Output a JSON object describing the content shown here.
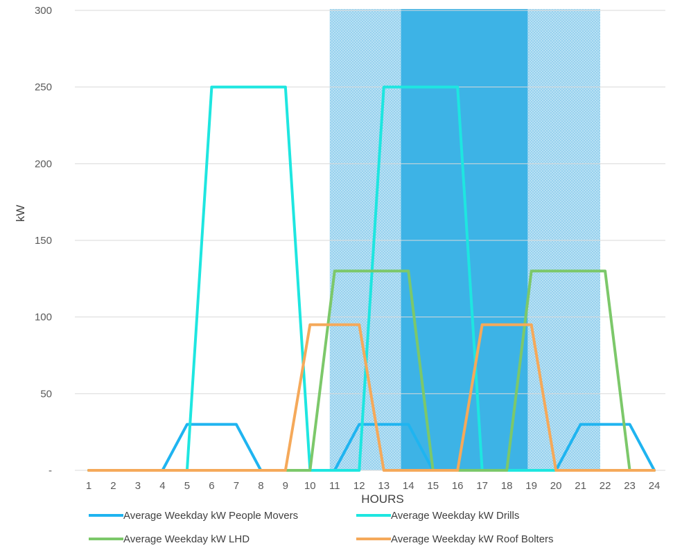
{
  "chart_data": {
    "type": "line",
    "title": "",
    "xlabel": "HOURS",
    "ylabel": "kW",
    "x": [
      1,
      2,
      3,
      4,
      5,
      6,
      7,
      8,
      9,
      10,
      11,
      12,
      13,
      14,
      15,
      16,
      17,
      18,
      19,
      20,
      21,
      22,
      23,
      24
    ],
    "x_tick_labels": [
      "1",
      "2",
      "3",
      "4",
      "5",
      "6",
      "7",
      "8",
      "9",
      "10",
      "11",
      "12",
      "13",
      "14",
      "15",
      "16",
      "17",
      "18",
      "19",
      "20",
      "21",
      "22",
      "23",
      "24"
    ],
    "ylim": [
      0,
      300
    ],
    "y_ticks": [
      0,
      50,
      100,
      150,
      200,
      250,
      300
    ],
    "y_tick_labels": [
      "-",
      "50",
      "100",
      "150",
      "200",
      "250",
      "300"
    ],
    "grid": true,
    "legend_position": "bottom",
    "shaded_bands": [
      {
        "x_start": 10.8,
        "x_end": 21.8,
        "color": "#a8d8f0",
        "pattern": "dotted"
      },
      {
        "x_start": 13.7,
        "x_end": 18.85,
        "color": "#3db3e6",
        "pattern": "solid"
      }
    ],
    "series": [
      {
        "name": "Average Weekday kW People Movers",
        "color": "#1fb4f0",
        "values": [
          0,
          0,
          0,
          0,
          30,
          30,
          30,
          0,
          0,
          0,
          0,
          30,
          30,
          30,
          0,
          0,
          0,
          0,
          0,
          0,
          30,
          30,
          30,
          0
        ]
      },
      {
        "name": "Average Weekday kW Drills",
        "color": "#1ee6e0",
        "values": [
          0,
          0,
          0,
          0,
          0,
          250,
          250,
          250,
          250,
          0,
          0,
          0,
          250,
          250,
          250,
          250,
          0,
          0,
          0,
          0,
          0,
          0,
          0,
          0
        ]
      },
      {
        "name": "Average Weekday kW LHD",
        "color": "#7cc86a",
        "values": [
          0,
          0,
          0,
          0,
          0,
          0,
          0,
          0,
          0,
          0,
          130,
          130,
          130,
          130,
          0,
          0,
          0,
          0,
          130,
          130,
          130,
          130,
          0,
          0
        ]
      },
      {
        "name": "Average Weekday kW Roof Bolters",
        "color": "#f5a95a",
        "values": [
          0,
          0,
          0,
          0,
          0,
          0,
          0,
          0,
          0,
          95,
          95,
          95,
          0,
          0,
          0,
          0,
          95,
          95,
          95,
          0,
          0,
          0,
          0,
          0
        ]
      }
    ]
  }
}
